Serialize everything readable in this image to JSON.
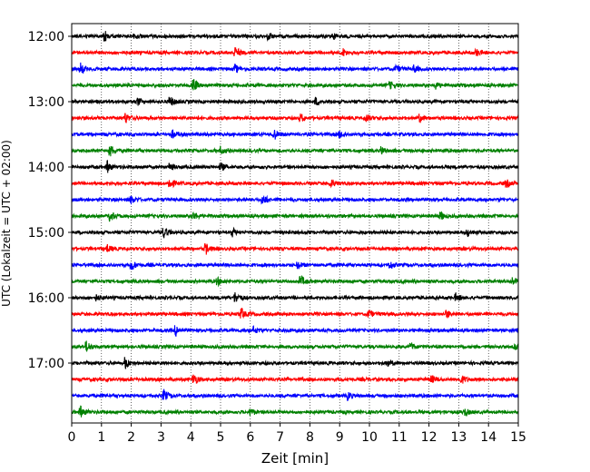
{
  "chart_data": {
    "type": "line",
    "title": "",
    "xlabel": "Zeit  [min]",
    "ylabel": "UTC (Lokalzeit = UTC + 02:00)",
    "xlim": [
      0,
      15
    ],
    "x_ticks": [
      0,
      1,
      2,
      3,
      4,
      5,
      6,
      7,
      8,
      9,
      10,
      11,
      12,
      13,
      14,
      15
    ],
    "y_ticks": [
      "12:00",
      "13:00",
      "14:00",
      "15:00",
      "16:00",
      "17:00"
    ],
    "grid": "vertical dotted",
    "legend": "none",
    "trace_interval_min": 15,
    "traces": [
      {
        "start": "12:00",
        "color": "#000000",
        "events": [
          1.1,
          2.1,
          6.6,
          8.8
        ]
      },
      {
        "start": "12:15",
        "color": "#ff0000",
        "events": [
          5.5,
          9.1,
          13.6
        ]
      },
      {
        "start": "12:30",
        "color": "#0000ff",
        "events": [
          0.3,
          5.5,
          10.9,
          11.5
        ]
      },
      {
        "start": "12:45",
        "color": "#008000",
        "events": [
          4.1,
          12.2,
          10.7
        ]
      },
      {
        "start": "13:00",
        "color": "#000000",
        "events": [
          3.3,
          2.2,
          8.2
        ]
      },
      {
        "start": "13:15",
        "color": "#ff0000",
        "events": [
          1.8,
          7.7,
          9.9,
          11.7
        ]
      },
      {
        "start": "13:30",
        "color": "#0000ff",
        "events": [
          6.8,
          3.4,
          9.0
        ]
      },
      {
        "start": "13:45",
        "color": "#008000",
        "events": [
          1.3,
          5.0,
          10.4
        ]
      },
      {
        "start": "14:00",
        "color": "#000000",
        "events": [
          1.2,
          5.0,
          3.3
        ]
      },
      {
        "start": "14:15",
        "color": "#ff0000",
        "events": [
          3.3,
          8.7,
          14.6
        ]
      },
      {
        "start": "14:30",
        "color": "#0000ff",
        "events": [
          6.4,
          2.0
        ]
      },
      {
        "start": "14:45",
        "color": "#008000",
        "events": [
          1.3,
          4.1,
          12.4
        ]
      },
      {
        "start": "15:00",
        "color": "#000000",
        "events": [
          3.1,
          5.4,
          13.3
        ]
      },
      {
        "start": "15:15",
        "color": "#ff0000",
        "events": [
          4.5,
          1.2
        ]
      },
      {
        "start": "15:30",
        "color": "#0000ff",
        "events": [
          2.0,
          7.6,
          10.7
        ]
      },
      {
        "start": "15:45",
        "color": "#008000",
        "events": [
          7.7,
          14.8,
          4.9
        ]
      },
      {
        "start": "16:00",
        "color": "#000000",
        "events": [
          5.5,
          0.8,
          12.9
        ]
      },
      {
        "start": "16:15",
        "color": "#ff0000",
        "events": [
          5.7,
          10.0,
          12.6
        ]
      },
      {
        "start": "16:30",
        "color": "#0000ff",
        "events": [
          3.5,
          6.1
        ]
      },
      {
        "start": "16:45",
        "color": "#008000",
        "events": [
          0.5,
          11.4,
          14.9
        ]
      },
      {
        "start": "17:00",
        "color": "#000000",
        "events": [
          1.8,
          10.6
        ]
      },
      {
        "start": "17:15",
        "color": "#ff0000",
        "events": [
          4.1,
          12.1,
          13.1
        ]
      },
      {
        "start": "17:30",
        "color": "#0000ff",
        "events": [
          3.1,
          9.3
        ]
      },
      {
        "start": "17:45",
        "color": "#008000",
        "events": [
          0.3,
          6.0,
          13.2
        ]
      }
    ]
  }
}
